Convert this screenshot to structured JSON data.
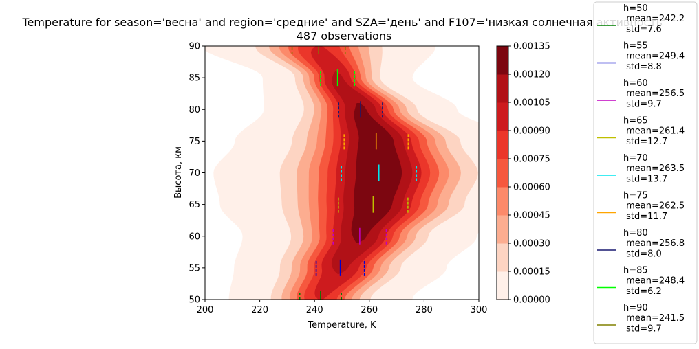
{
  "chart_data": {
    "type": "contour",
    "title": "Temperature for season='весна' and region='средние' and SZA='день' and F107='низкая солнечная активность'",
    "subtitle": "487 observations",
    "xlabel": "Temperature, K",
    "ylabel": "Высота, км",
    "xlim": [
      200,
      300
    ],
    "ylim": [
      50,
      90
    ],
    "xticks": [
      "200",
      "220",
      "240",
      "260",
      "280",
      "300"
    ],
    "yticks": [
      "50",
      "55",
      "60",
      "65",
      "70",
      "75",
      "80",
      "85",
      "90"
    ],
    "grid": false,
    "colorbar": {
      "ticks": [
        "0.00000",
        "0.00015",
        "0.00030",
        "0.00045",
        "0.00060",
        "0.00075",
        "0.00090",
        "0.00105",
        "0.00120",
        "0.00135"
      ],
      "levels": [
        0,
        0.00015,
        0.0003,
        0.00045,
        0.0006,
        0.00075,
        0.0009,
        0.00105,
        0.0012,
        0.00135
      ],
      "colormap": "Reds",
      "colors": [
        "#fff0e9",
        "#fdd4c2",
        "#fcad90",
        "#fc8a6a",
        "#f6583e",
        "#eb362a",
        "#cd1b1e",
        "#b11117",
        "#7c0610"
      ]
    },
    "legend_position": "outside-right",
    "density_ridge": {
      "height": [
        50,
        55,
        60,
        65,
        70,
        75,
        80,
        85,
        90
      ],
      "temperature": [
        242.2,
        249.4,
        256.5,
        261.4,
        263.5,
        262.5,
        256.8,
        248.4,
        241.5
      ],
      "std": [
        7.6,
        8.8,
        9.7,
        12.7,
        13.7,
        11.7,
        8.0,
        6.2,
        9.7
      ]
    },
    "series": [
      {
        "name": "h=50\n mean=242.2\n std=7.6",
        "h": 50,
        "mean": 242.2,
        "std": 7.6,
        "color": "#008000"
      },
      {
        "name": "h=55\n mean=249.4\n std=8.8",
        "h": 55,
        "mean": 249.4,
        "std": 8.8,
        "color": "#0000cd"
      },
      {
        "name": "h=60\n mean=256.5\n std=9.7",
        "h": 60,
        "mean": 256.5,
        "std": 9.7,
        "color": "#c000c0"
      },
      {
        "name": "h=65\n mean=261.4\n std=12.7",
        "h": 65,
        "mean": 261.4,
        "std": 12.7,
        "color": "#bfbf00"
      },
      {
        "name": "h=70\n mean=263.5\n std=13.7",
        "h": 70,
        "mean": 263.5,
        "std": 13.7,
        "color": "#00e5ee"
      },
      {
        "name": "h=75\n mean=262.5\n std=11.7",
        "h": 75,
        "mean": 262.5,
        "std": 11.7,
        "color": "#ffa500"
      },
      {
        "name": "h=80\n mean=256.8\n std=8.0",
        "h": 80,
        "mean": 256.8,
        "std": 8.0,
        "color": "#191970"
      },
      {
        "name": "h=85\n mean=248.4\n std=6.2",
        "h": 85,
        "mean": 248.4,
        "std": 6.2,
        "color": "#00ff00"
      },
      {
        "name": "h=90\n mean=241.5\n std=9.7",
        "h": 90,
        "mean": 241.5,
        "std": 9.7,
        "color": "#808000"
      }
    ]
  }
}
